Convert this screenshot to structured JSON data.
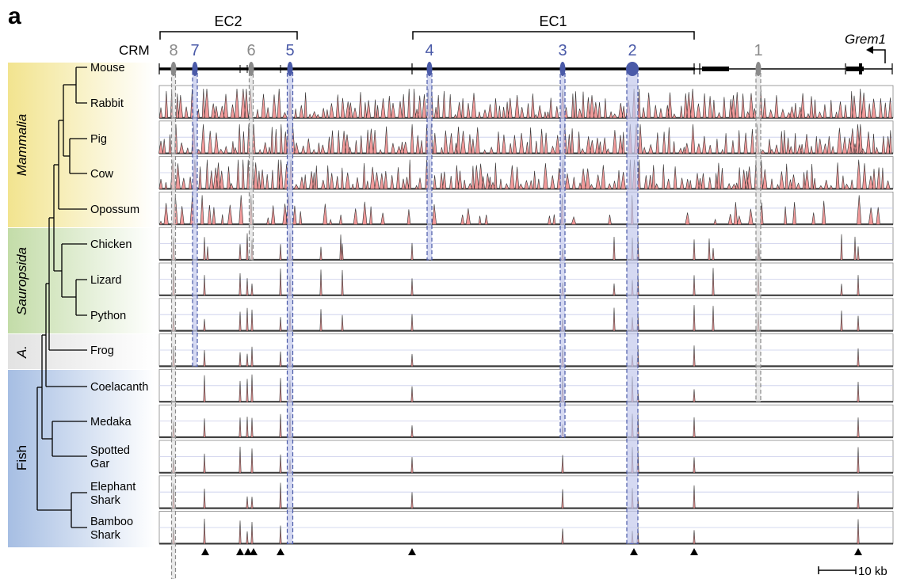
{
  "panel_label": "a",
  "crm_label": "CRM",
  "gene_label": "Grem1",
  "brackets": [
    {
      "label": "EC2"
    },
    {
      "label": "EC1"
    }
  ],
  "crms": [
    {
      "label": "8",
      "color": "grey"
    },
    {
      "label": "7",
      "color": "blue"
    },
    {
      "label": "6",
      "color": "grey"
    },
    {
      "label": "5",
      "color": "blue"
    },
    {
      "label": "4",
      "color": "blue"
    },
    {
      "label": "3",
      "color": "blue"
    },
    {
      "label": "2",
      "color": "blue"
    },
    {
      "label": "1",
      "color": "grey"
    }
  ],
  "groups": [
    {
      "label": "Mammalia",
      "italic": true
    },
    {
      "label": "Sauropsida",
      "italic": true
    },
    {
      "label": "A.",
      "italic": true
    },
    {
      "label": "Fish",
      "italic": false
    }
  ],
  "species": [
    {
      "line1": "Mouse",
      "line2": ""
    },
    {
      "line1": "Rabbit",
      "line2": ""
    },
    {
      "line1": "Pig",
      "line2": ""
    },
    {
      "line1": "Cow",
      "line2": ""
    },
    {
      "line1": "Opossum",
      "line2": ""
    },
    {
      "line1": "Chicken",
      "line2": ""
    },
    {
      "line1": "Lizard",
      "line2": ""
    },
    {
      "line1": "Python",
      "line2": ""
    },
    {
      "line1": "Frog",
      "line2": ""
    },
    {
      "line1": "Coelacanth",
      "line2": ""
    },
    {
      "line1": "Medaka",
      "line2": ""
    },
    {
      "line1": "Spotted",
      "line2": "Gar"
    },
    {
      "line1": "Elephant",
      "line2": "Shark"
    },
    {
      "line1": "Bamboo",
      "line2": "Shark"
    }
  ],
  "scale_bar": {
    "label": "10 kb"
  },
  "colors": {
    "mammalia": "#f3eaa0",
    "sauropsida": "#cfe3b8",
    "amphibia": "#e6e6e6",
    "fish": "#a9c0e4",
    "blue_crm": "#4a5aa8",
    "grey_crm": "#8a8a8a",
    "peak_fill": "#f08a8a",
    "highlight": "#c3c9ec"
  }
}
